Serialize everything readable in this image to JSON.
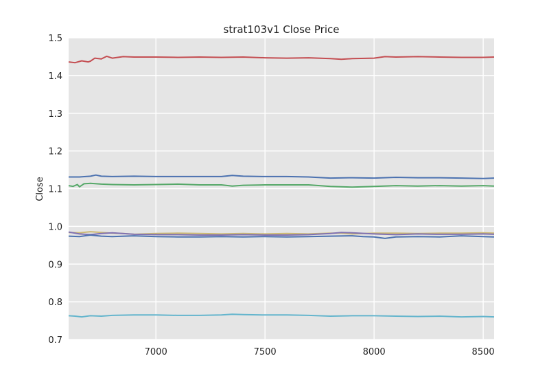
{
  "chart_data": {
    "type": "line",
    "title": "strat103v1 Close Price",
    "xlabel": "",
    "ylabel": "Close",
    "xlim": [
      6600,
      8550
    ],
    "ylim": [
      0.7,
      1.5
    ],
    "xticks": [
      7000,
      7500,
      8000,
      8500
    ],
    "yticks": [
      0.7,
      0.8,
      0.9,
      1.0,
      1.1,
      1.2,
      1.3,
      1.4,
      1.5
    ],
    "xtick_labels": [
      "7000",
      "7500",
      "8000",
      "8500"
    ],
    "ytick_labels": [
      "0.7",
      "0.8",
      "0.9",
      "1.0",
      "1.1",
      "1.2",
      "1.3",
      "1.4",
      "1.5"
    ],
    "grid": true,
    "background": "#e5e5e5",
    "series": [
      {
        "color": "#c44e52",
        "points": [
          [
            6600,
            1.436
          ],
          [
            6630,
            1.434
          ],
          [
            6660,
            1.439
          ],
          [
            6690,
            1.436
          ],
          [
            6700,
            1.438
          ],
          [
            6720,
            1.446
          ],
          [
            6750,
            1.444
          ],
          [
            6775,
            1.451
          ],
          [
            6800,
            1.446
          ],
          [
            6850,
            1.45
          ],
          [
            6900,
            1.449
          ],
          [
            7000,
            1.449
          ],
          [
            7100,
            1.448
          ],
          [
            7200,
            1.449
          ],
          [
            7300,
            1.448
          ],
          [
            7400,
            1.449
          ],
          [
            7500,
            1.447
          ],
          [
            7600,
            1.446
          ],
          [
            7700,
            1.447
          ],
          [
            7800,
            1.445
          ],
          [
            7850,
            1.443
          ],
          [
            7900,
            1.445
          ],
          [
            8000,
            1.446
          ],
          [
            8050,
            1.45
          ],
          [
            8100,
            1.449
          ],
          [
            8200,
            1.45
          ],
          [
            8300,
            1.449
          ],
          [
            8400,
            1.448
          ],
          [
            8500,
            1.448
          ],
          [
            8550,
            1.449
          ]
        ]
      },
      {
        "color": "#4c72b0",
        "points": [
          [
            6600,
            1.131
          ],
          [
            6650,
            1.131
          ],
          [
            6700,
            1.133
          ],
          [
            6725,
            1.136
          ],
          [
            6750,
            1.133
          ],
          [
            6800,
            1.132
          ],
          [
            6900,
            1.133
          ],
          [
            7000,
            1.132
          ],
          [
            7100,
            1.132
          ],
          [
            7200,
            1.132
          ],
          [
            7300,
            1.132
          ],
          [
            7350,
            1.135
          ],
          [
            7400,
            1.133
          ],
          [
            7500,
            1.132
          ],
          [
            7600,
            1.132
          ],
          [
            7700,
            1.131
          ],
          [
            7800,
            1.128
          ],
          [
            7900,
            1.129
          ],
          [
            8000,
            1.128
          ],
          [
            8100,
            1.13
          ],
          [
            8200,
            1.129
          ],
          [
            8300,
            1.129
          ],
          [
            8400,
            1.128
          ],
          [
            8500,
            1.127
          ],
          [
            8550,
            1.128
          ]
        ]
      },
      {
        "color": "#55a868",
        "points": [
          [
            6600,
            1.108
          ],
          [
            6620,
            1.106
          ],
          [
            6640,
            1.111
          ],
          [
            6650,
            1.105
          ],
          [
            6670,
            1.113
          ],
          [
            6700,
            1.114
          ],
          [
            6750,
            1.112
          ],
          [
            6800,
            1.111
          ],
          [
            6900,
            1.11
          ],
          [
            7000,
            1.111
          ],
          [
            7100,
            1.112
          ],
          [
            7200,
            1.11
          ],
          [
            7300,
            1.11
          ],
          [
            7350,
            1.107
          ],
          [
            7400,
            1.109
          ],
          [
            7500,
            1.11
          ],
          [
            7600,
            1.11
          ],
          [
            7700,
            1.11
          ],
          [
            7800,
            1.106
          ],
          [
            7900,
            1.104
          ],
          [
            8000,
            1.106
          ],
          [
            8100,
            1.108
          ],
          [
            8200,
            1.107
          ],
          [
            8300,
            1.108
          ],
          [
            8400,
            1.107
          ],
          [
            8500,
            1.108
          ],
          [
            8550,
            1.107
          ]
        ]
      },
      {
        "color": "#ccb974",
        "points": [
          [
            6600,
            0.984
          ],
          [
            6650,
            0.983
          ],
          [
            6700,
            0.986
          ],
          [
            6750,
            0.984
          ],
          [
            6800,
            0.982
          ],
          [
            6850,
            0.981
          ],
          [
            6900,
            0.979
          ],
          [
            7000,
            0.981
          ],
          [
            7100,
            0.982
          ],
          [
            7200,
            0.981
          ],
          [
            7300,
            0.98
          ],
          [
            7400,
            0.981
          ],
          [
            7500,
            0.98
          ],
          [
            7600,
            0.981
          ],
          [
            7700,
            0.98
          ],
          [
            7800,
            0.982
          ],
          [
            7850,
            0.982
          ],
          [
            7900,
            0.98
          ],
          [
            8000,
            0.982
          ],
          [
            8100,
            0.982
          ],
          [
            8200,
            0.981
          ],
          [
            8300,
            0.982
          ],
          [
            8400,
            0.982
          ],
          [
            8500,
            0.983
          ],
          [
            8550,
            0.982
          ]
        ]
      },
      {
        "color": "#8172b2",
        "points": [
          [
            6600,
            0.985
          ],
          [
            6650,
            0.98
          ],
          [
            6700,
            0.978
          ],
          [
            6750,
            0.981
          ],
          [
            6800,
            0.983
          ],
          [
            6900,
            0.979
          ],
          [
            7000,
            0.978
          ],
          [
            7100,
            0.978
          ],
          [
            7200,
            0.977
          ],
          [
            7300,
            0.977
          ],
          [
            7400,
            0.978
          ],
          [
            7500,
            0.977
          ],
          [
            7600,
            0.977
          ],
          [
            7700,
            0.978
          ],
          [
            7800,
            0.981
          ],
          [
            7850,
            0.984
          ],
          [
            7900,
            0.983
          ],
          [
            8000,
            0.98
          ],
          [
            8050,
            0.979
          ],
          [
            8100,
            0.978
          ],
          [
            8200,
            0.98
          ],
          [
            8300,
            0.979
          ],
          [
            8400,
            0.979
          ],
          [
            8500,
            0.98
          ],
          [
            8550,
            0.979
          ]
        ]
      },
      {
        "color": "#4c72b0",
        "points": [
          [
            6600,
            0.974
          ],
          [
            6650,
            0.973
          ],
          [
            6700,
            0.977
          ],
          [
            6750,
            0.974
          ],
          [
            6800,
            0.973
          ],
          [
            6900,
            0.975
          ],
          [
            7000,
            0.973
          ],
          [
            7100,
            0.972
          ],
          [
            7200,
            0.972
          ],
          [
            7300,
            0.973
          ],
          [
            7400,
            0.972
          ],
          [
            7500,
            0.973
          ],
          [
            7600,
            0.972
          ],
          [
            7700,
            0.973
          ],
          [
            7800,
            0.974
          ],
          [
            7900,
            0.975
          ],
          [
            7950,
            0.973
          ],
          [
            8000,
            0.972
          ],
          [
            8050,
            0.968
          ],
          [
            8100,
            0.972
          ],
          [
            8200,
            0.973
          ],
          [
            8300,
            0.972
          ],
          [
            8400,
            0.975
          ],
          [
            8500,
            0.973
          ],
          [
            8550,
            0.972
          ]
        ]
      },
      {
        "color": "#64b5cd",
        "points": [
          [
            6600,
            0.763
          ],
          [
            6630,
            0.762
          ],
          [
            6660,
            0.76
          ],
          [
            6700,
            0.763
          ],
          [
            6750,
            0.762
          ],
          [
            6800,
            0.764
          ],
          [
            6900,
            0.765
          ],
          [
            7000,
            0.765
          ],
          [
            7100,
            0.764
          ],
          [
            7200,
            0.764
          ],
          [
            7300,
            0.765
          ],
          [
            7350,
            0.767
          ],
          [
            7400,
            0.766
          ],
          [
            7500,
            0.765
          ],
          [
            7600,
            0.765
          ],
          [
            7700,
            0.764
          ],
          [
            7800,
            0.762
          ],
          [
            7900,
            0.763
          ],
          [
            8000,
            0.763
          ],
          [
            8100,
            0.762
          ],
          [
            8200,
            0.761
          ],
          [
            8300,
            0.762
          ],
          [
            8400,
            0.76
          ],
          [
            8500,
            0.761
          ],
          [
            8550,
            0.76
          ]
        ]
      }
    ]
  }
}
